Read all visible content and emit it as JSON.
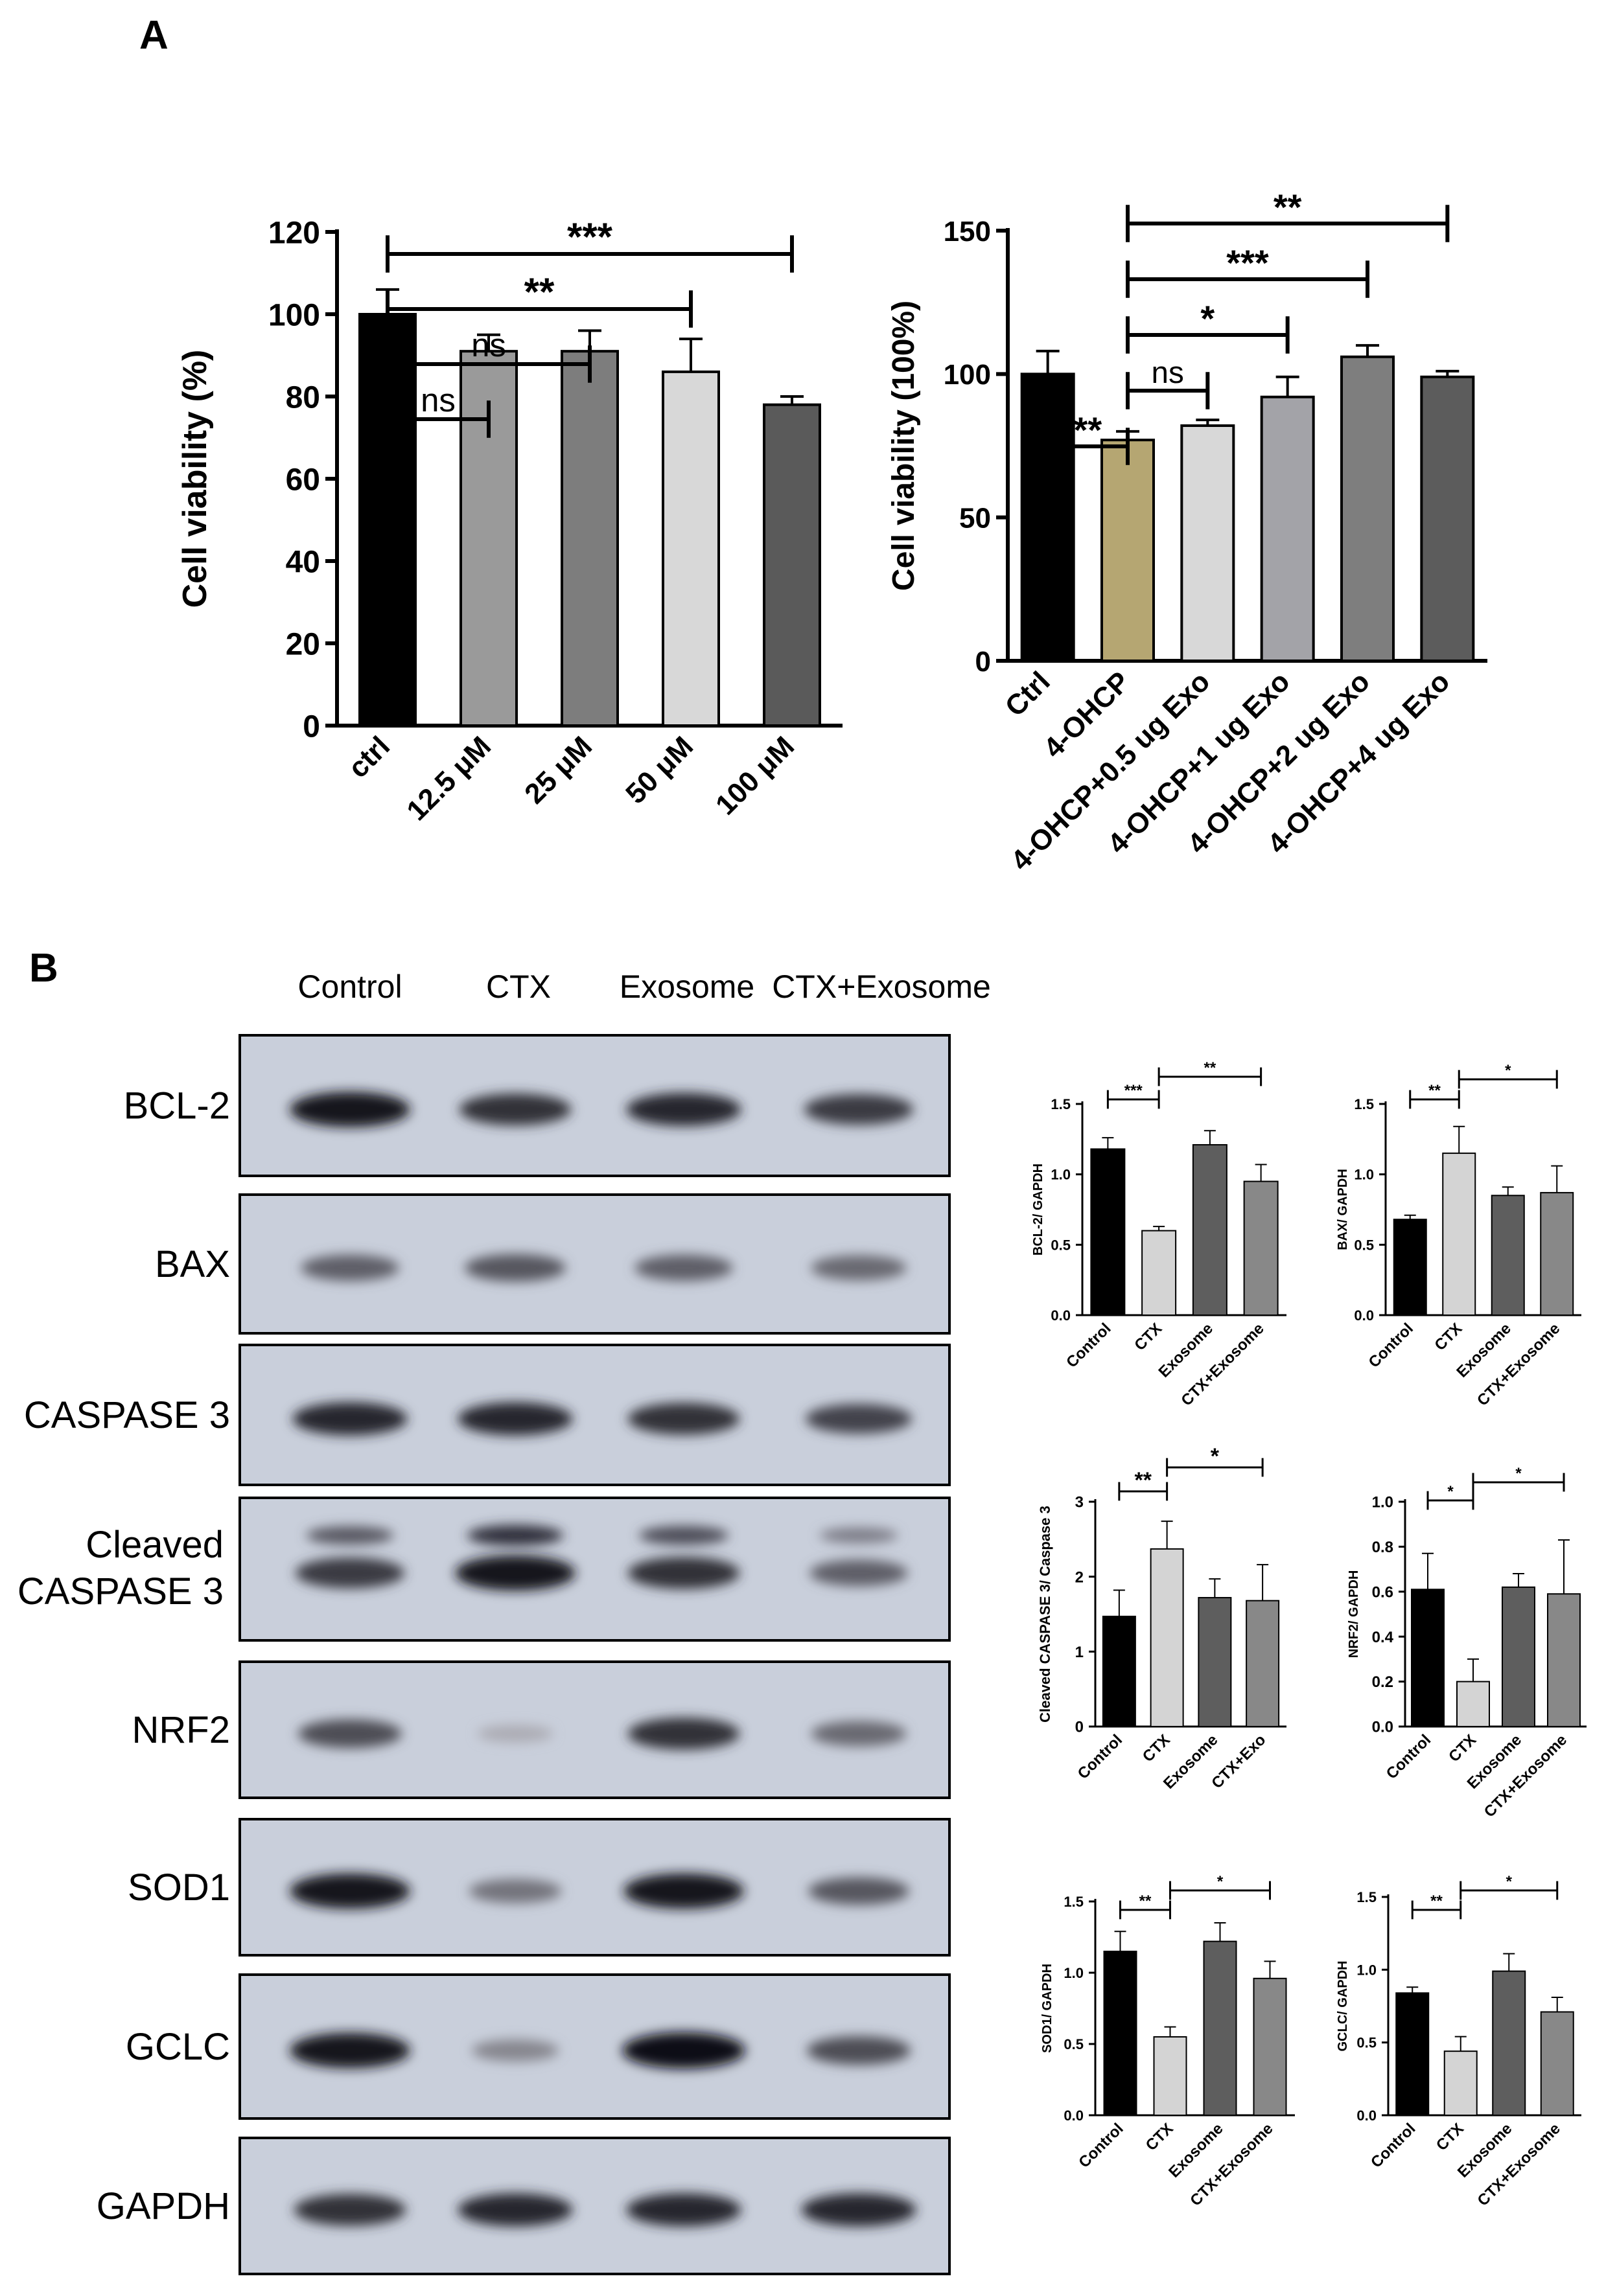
{
  "panel_labels": [
    "A",
    "B"
  ],
  "colors": {
    "black": "#000000",
    "olive": "#b5a672",
    "light_gray": "#d4d4d4",
    "mid_gray": "#9a9a9a",
    "dark_gray": "#7a7a7a",
    "darker_gray": "#5a5a5a",
    "blot_bg": "#c9cfdb"
  },
  "blot": {
    "lane_labels": [
      "Control",
      "CTX",
      "Exosome",
      "CTX+Exosome"
    ],
    "rows": [
      {
        "label": [
          "BCL-2"
        ],
        "intensity": [
          0.95,
          0.8,
          0.85,
          0.75
        ]
      },
      {
        "label": [
          "BAX"
        ],
        "intensity": [
          0.55,
          0.6,
          0.55,
          0.5
        ]
      },
      {
        "label": [
          "CASPASE 3"
        ],
        "intensity": [
          0.85,
          0.85,
          0.8,
          0.7
        ]
      },
      {
        "label": [
          "Cleaved",
          "CASPASE 3"
        ],
        "intensity": [
          0.75,
          0.95,
          0.8,
          0.55
        ]
      },
      {
        "label": [
          "NRF2"
        ],
        "intensity": [
          0.65,
          0.15,
          0.8,
          0.5
        ]
      },
      {
        "label": [
          "SOD1"
        ],
        "intensity": [
          0.95,
          0.45,
          0.95,
          0.6
        ]
      },
      {
        "label": [
          "GCLC"
        ],
        "intensity": [
          0.95,
          0.35,
          1.0,
          0.65
        ]
      },
      {
        "label": [
          "GAPDH"
        ],
        "intensity": [
          0.8,
          0.85,
          0.85,
          0.85
        ]
      }
    ]
  },
  "chart_data": [
    {
      "id": "A-left",
      "type": "bar",
      "categories": [
        "ctrl",
        "12.5 μM",
        "25 μM",
        "50 μM",
        "100 μM"
      ],
      "values": [
        100,
        91,
        91,
        86,
        78
      ],
      "errors": [
        6,
        4,
        5,
        8,
        2
      ],
      "bar_colors": [
        "#000000",
        "#9a9a9a",
        "#7d7d7d",
        "#d8d8d8",
        "#5a5a5a"
      ],
      "ylabel": "Cell viability (%)",
      "ylim": [
        0,
        120
      ],
      "yticks": [
        "0",
        "20",
        "40",
        "60",
        "80",
        "100",
        "120"
      ],
      "significance": [
        {
          "from": 0,
          "to": 4,
          "label": "***"
        },
        {
          "from": 0,
          "to": 3,
          "label": "**"
        },
        {
          "from": 0,
          "to": 2,
          "label": "ns"
        },
        {
          "from": 0,
          "to": 1,
          "label": "ns"
        }
      ]
    },
    {
      "id": "A-right",
      "type": "bar",
      "categories": [
        "Ctrl",
        "4-OHCP",
        "4-OHCP+0.5 ug Exo",
        "4-OHCP+1 ug Exo",
        "4-OHCP+2 ug Exo",
        "4-OHCP+4 ug Exo"
      ],
      "values": [
        100,
        77,
        82,
        92,
        106,
        99
      ],
      "errors": [
        8,
        3,
        2,
        7,
        4,
        2
      ],
      "bar_colors": [
        "#000000",
        "#b5a672",
        "#d8d8d8",
        "#a3a3a8",
        "#7e7e7e",
        "#5c5c5c"
      ],
      "ylabel": "Cell viability (100%)",
      "ylim": [
        0,
        150
      ],
      "yticks": [
        "0",
        "50",
        "100",
        "150"
      ],
      "significance": [
        {
          "from": 1,
          "to": 5,
          "label": "**"
        },
        {
          "from": 1,
          "to": 4,
          "label": "***"
        },
        {
          "from": 1,
          "to": 3,
          "label": "*"
        },
        {
          "from": 1,
          "to": 2,
          "label": "ns"
        },
        {
          "from": 0,
          "to": 1,
          "label": "**"
        }
      ]
    },
    {
      "id": "B-bcl2",
      "type": "bar",
      "categories": [
        "Control",
        "CTX",
        "Exosome",
        "CTX+Exosome"
      ],
      "values": [
        1.18,
        0.6,
        1.21,
        0.95
      ],
      "errors": [
        0.08,
        0.03,
        0.1,
        0.12
      ],
      "bar_colors": [
        "#000000",
        "#d4d4d4",
        "#5e5e5e",
        "#888888"
      ],
      "ylabel": "BCL-2/ GAPDH",
      "ylim": [
        0,
        1.5
      ],
      "yticks": [
        "0.0",
        "0.5",
        "1.0",
        "1.5"
      ],
      "significance": [
        {
          "from": 0,
          "to": 1,
          "label": "***"
        },
        {
          "from": 1,
          "to": 3,
          "label": "**"
        }
      ]
    },
    {
      "id": "B-bax",
      "type": "bar",
      "categories": [
        "Control",
        "CTX",
        "Exosome",
        "CTX+Exosome"
      ],
      "values": [
        0.68,
        1.15,
        0.85,
        0.87
      ],
      "errors": [
        0.03,
        0.19,
        0.06,
        0.19
      ],
      "bar_colors": [
        "#000000",
        "#d4d4d4",
        "#5e5e5e",
        "#888888"
      ],
      "ylabel": "BAX/ GAPDH",
      "ylim": [
        0,
        1.5
      ],
      "yticks": [
        "0.0",
        "0.5",
        "1.0",
        "1.5"
      ],
      "significance": [
        {
          "from": 0,
          "to": 1,
          "label": "**"
        },
        {
          "from": 1,
          "to": 3,
          "label": "*"
        }
      ]
    },
    {
      "id": "B-cleaved",
      "type": "bar",
      "categories": [
        "Control",
        "CTX",
        "Exosome",
        "CTX+Exo"
      ],
      "values": [
        1.47,
        2.37,
        1.72,
        1.68
      ],
      "errors": [
        0.35,
        0.37,
        0.25,
        0.48
      ],
      "bar_colors": [
        "#000000",
        "#d4d4d4",
        "#5e5e5e",
        "#888888"
      ],
      "ylabel": "Cleaved CASPASE 3/ Caspase 3",
      "ylim": [
        0,
        3
      ],
      "yticks": [
        "0",
        "1",
        "2",
        "3"
      ],
      "significance": [
        {
          "from": 0,
          "to": 1,
          "label": "**"
        },
        {
          "from": 1,
          "to": 3,
          "label": "*"
        }
      ]
    },
    {
      "id": "B-nrf2",
      "type": "bar",
      "categories": [
        "Control",
        "CTX",
        "Exosome",
        "CTX+Exosome"
      ],
      "values": [
        0.61,
        0.2,
        0.62,
        0.59
      ],
      "errors": [
        0.16,
        0.1,
        0.06,
        0.24
      ],
      "bar_colors": [
        "#000000",
        "#d4d4d4",
        "#5e5e5e",
        "#888888"
      ],
      "ylabel": "NRF2/ GAPDH",
      "ylim": [
        0,
        1.0
      ],
      "yticks": [
        "0.0",
        "0.2",
        "0.4",
        "0.6",
        "0.8",
        "1.0"
      ],
      "significance": [
        {
          "from": 0,
          "to": 1,
          "label": "*"
        },
        {
          "from": 1,
          "to": 3,
          "label": "*"
        }
      ]
    },
    {
      "id": "B-sod1",
      "type": "bar",
      "categories": [
        "Control",
        "CTX",
        "Exosome",
        "CTX+Exosome"
      ],
      "values": [
        1.15,
        0.55,
        1.22,
        0.96
      ],
      "errors": [
        0.14,
        0.07,
        0.13,
        0.12
      ],
      "bar_colors": [
        "#000000",
        "#d4d4d4",
        "#5e5e5e",
        "#888888"
      ],
      "ylabel": "SOD1/ GAPDH",
      "ylim": [
        0,
        1.5
      ],
      "yticks": [
        "0.0",
        "0.5",
        "1.0",
        "1.5"
      ],
      "significance": [
        {
          "from": 0,
          "to": 1,
          "label": "**"
        },
        {
          "from": 1,
          "to": 3,
          "label": "*"
        }
      ]
    },
    {
      "id": "B-gclc",
      "type": "bar",
      "categories": [
        "Control",
        "CTX",
        "Exosome",
        "CTX+Exosome"
      ],
      "values": [
        0.84,
        0.44,
        0.99,
        0.71
      ],
      "errors": [
        0.04,
        0.1,
        0.12,
        0.1
      ],
      "bar_colors": [
        "#000000",
        "#d4d4d4",
        "#5e5e5e",
        "#888888"
      ],
      "ylabel": "GCLC/ GAPDH",
      "ylim": [
        0,
        1.5
      ],
      "yticks": [
        "0.0",
        "0.5",
        "1.0",
        "1.5"
      ],
      "significance": [
        {
          "from": 0,
          "to": 1,
          "label": "**"
        },
        {
          "from": 1,
          "to": 3,
          "label": "*"
        }
      ]
    }
  ]
}
